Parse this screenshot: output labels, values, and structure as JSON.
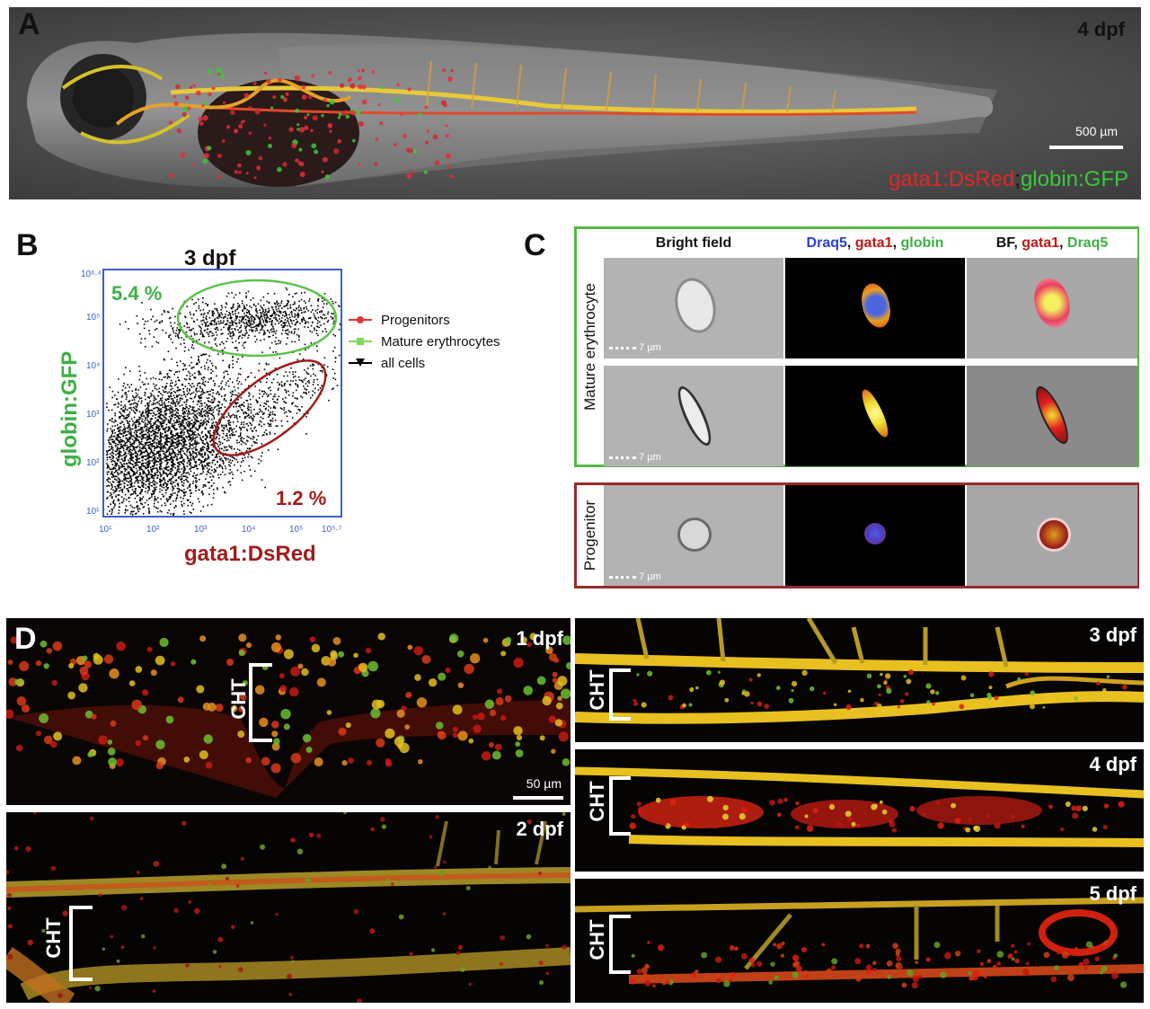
{
  "panel_a": {
    "letter": "A",
    "stage": "4 dpf",
    "scale_bar": "500 µm",
    "label_red": "gata1:DsRed",
    "label_sep": ";",
    "label_green": "globin:GFP"
  },
  "panel_b": {
    "letter": "B",
    "stage": "3 dpf",
    "gate_green_pct": "5.4 %",
    "gate_red_pct": "1.2 %",
    "y_label": "globin:GFP",
    "x_label": "gata1:DsRed",
    "y_ticks": [
      "10¹",
      "10²",
      "10³",
      "10⁴",
      "10⁵",
      "10⁶·⁴"
    ],
    "x_ticks": [
      "10¹",
      "10²",
      "10³",
      "10⁴",
      "10⁵",
      "10⁵·⁷"
    ],
    "legend": [
      "Progenitors",
      "Mature erythrocytes",
      "all cells"
    ],
    "colors": {
      "progenitors": "#e8322d",
      "mature": "#7ed957",
      "all": "#000000",
      "axis": "#3a5fcd",
      "gate_green": "#5cc24a",
      "gate_red": "#a01c1c"
    }
  },
  "panel_c": {
    "letter": "C",
    "headers": {
      "bright_field": "Bright field",
      "h2": [
        "Draq5",
        ", ",
        "gata1",
        ", ",
        "globin"
      ],
      "h3": [
        "BF",
        ", ",
        "gata1",
        ", ",
        "Draq5"
      ]
    },
    "row_label_mature": "Mature erythrocyte",
    "row_label_progenitor": "Progenitor",
    "scale": "7 µm"
  },
  "panel_d": {
    "letter": "D",
    "stages": [
      "1 dpf",
      "2 dpf",
      "3 dpf",
      "4 dpf",
      "5 dpf"
    ],
    "region": "CHT",
    "scale_bar": "50 µm"
  }
}
